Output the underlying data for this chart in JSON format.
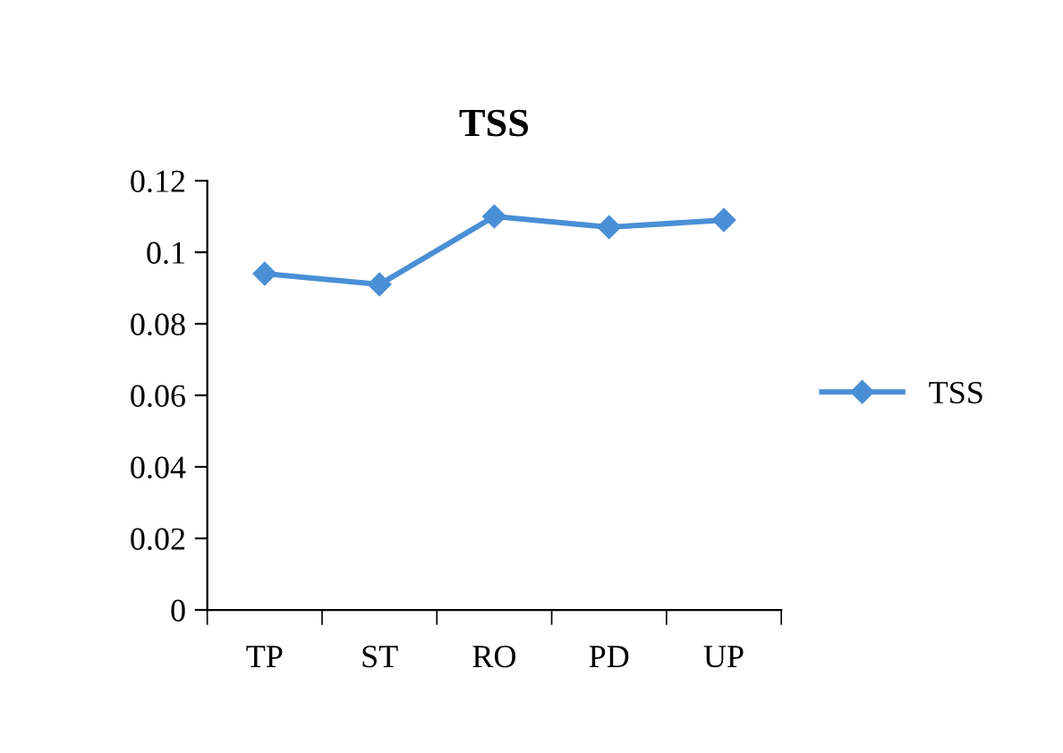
{
  "chart_data": {
    "type": "line",
    "title": "TSS",
    "categories": [
      "TP",
      "ST",
      "RO",
      "PD",
      "UP"
    ],
    "series": [
      {
        "name": "TSS",
        "color": "#4a8fd6",
        "values": [
          0.094,
          0.091,
          0.11,
          0.107,
          0.109
        ]
      }
    ],
    "ylim": [
      0,
      0.12
    ],
    "yticks": [
      {
        "value": 0,
        "label": "0"
      },
      0.02,
      0.04,
      0.06,
      0.08,
      {
        "value": 0.1,
        "label": "0.1"
      },
      0.12
    ],
    "marker": "diamond",
    "line_style": "solid",
    "grid": false,
    "legend": "right"
  }
}
